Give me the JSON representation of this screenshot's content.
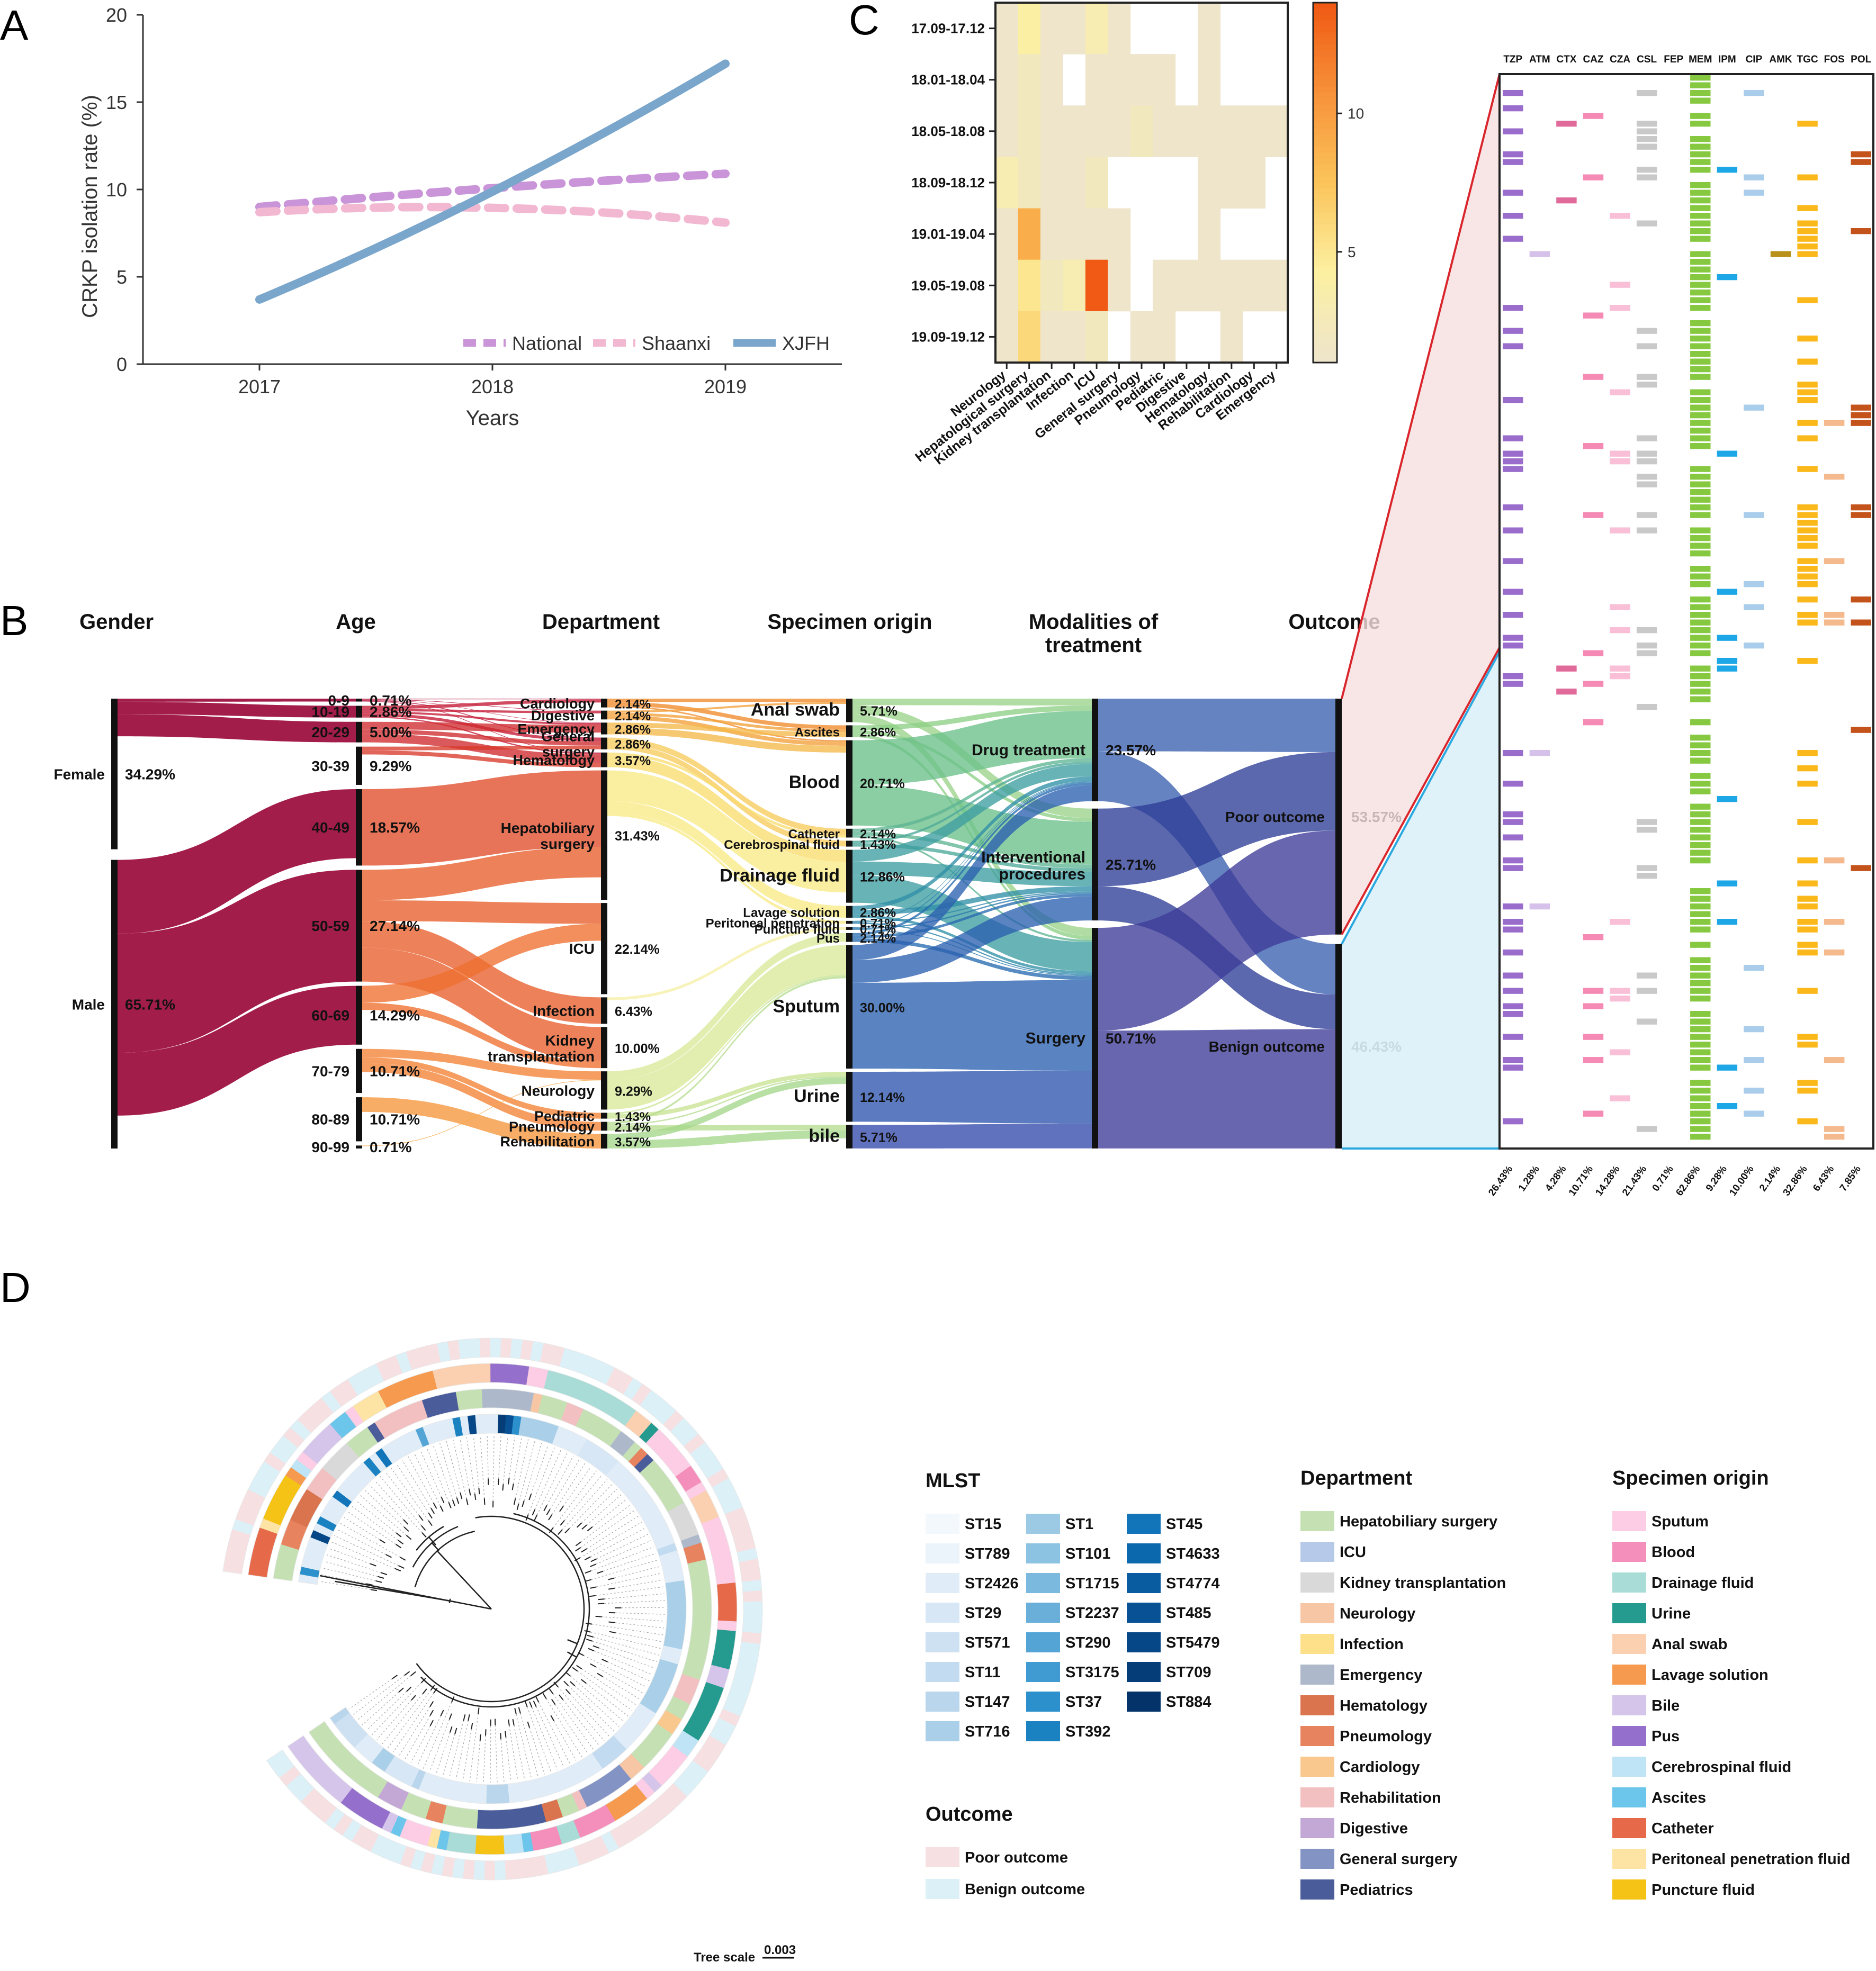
{
  "panel_labels": {
    "a": "A",
    "b": "B",
    "c": "C",
    "d": "D"
  },
  "chart_data": [
    {
      "type": "line",
      "panel": "A",
      "xlabel": "Years",
      "ylabel": "CRKP isolation rate (%)",
      "x": [
        2017,
        2018,
        2019
      ],
      "ylim": [
        0,
        20
      ],
      "yticks": [
        "0",
        "5",
        "10",
        "15",
        "20"
      ],
      "xticks": [
        "2017",
        "2018",
        "2019"
      ],
      "legend_position": "bottom-right",
      "series": [
        {
          "name": "National",
          "style": "dashed",
          "color": "#c994d8",
          "values": [
            9.0,
            10.2,
            10.9
          ]
        },
        {
          "name": "Shaanxi",
          "style": "dashed",
          "color": "#f2b8d2",
          "values": [
            8.7,
            9.5,
            8.1
          ]
        },
        {
          "name": "XJFH",
          "style": "solid",
          "color": "#7aa6cc",
          "values": [
            3.7,
            9.3,
            17.2
          ]
        }
      ]
    },
    {
      "type": "heatmap",
      "panel": "C",
      "rows": [
        "17.09-17.12",
        "18.01-18.04",
        "18.05-18.08",
        "18.09-18.12",
        "19.01-19.04",
        "19.05-19.08",
        "19.09-19.12"
      ],
      "columns": [
        "Neurology",
        "Hepatological surgery",
        "Kidney transplantation",
        "Infection",
        "ICU",
        "General surgery",
        "Pneumology",
        "Pediatric",
        "Digestive",
        "Hematology",
        "Rehabilitation",
        "Cardiology",
        "Emergency"
      ],
      "colorbar_ticks": [
        "5",
        "10"
      ],
      "colorbar_range": [
        1,
        14
      ],
      "values": [
        [
          1,
          4,
          1,
          1,
          3,
          1,
          0,
          0,
          0,
          1,
          0,
          0,
          0
        ],
        [
          1,
          2,
          1,
          0,
          1,
          1,
          1,
          1,
          0,
          1,
          0,
          0,
          0
        ],
        [
          1,
          2,
          1,
          1,
          1,
          1,
          2,
          1,
          1,
          1,
          1,
          1,
          1
        ],
        [
          3,
          2,
          1,
          1,
          2,
          0,
          0,
          0,
          0,
          1,
          1,
          1,
          0
        ],
        [
          1,
          9,
          1,
          1,
          1,
          1,
          0,
          0,
          0,
          1,
          0,
          0,
          0
        ],
        [
          1,
          5,
          2,
          3,
          14,
          1,
          0,
          1,
          1,
          1,
          1,
          1,
          1
        ],
        [
          1,
          6,
          1,
          1,
          2,
          0,
          1,
          1,
          0,
          0,
          1,
          0,
          0
        ]
      ]
    },
    {
      "type": "sankey",
      "panel": "B",
      "stage_titles": [
        "Gender",
        "Age",
        "Department",
        "Specimen origin",
        "Modalities of treatment",
        "Outcome"
      ],
      "stages": [
        [
          {
            "label": "Female",
            "pct": "34.29%",
            "value": 34.29
          },
          {
            "label": "Male",
            "pct": "65.71%",
            "value": 65.71
          }
        ],
        [
          {
            "label": "0-9",
            "pct": "0.71%",
            "value": 0.71
          },
          {
            "label": "10-19",
            "pct": "2.86%",
            "value": 2.86
          },
          {
            "label": "20-29",
            "pct": "5.00%",
            "value": 5.0
          },
          {
            "label": "30-39",
            "pct": "9.29%",
            "value": 9.29
          },
          {
            "label": "40-49",
            "pct": "18.57%",
            "value": 18.57
          },
          {
            "label": "50-59",
            "pct": "27.14%",
            "value": 27.14
          },
          {
            "label": "60-69",
            "pct": "14.29%",
            "value": 14.29
          },
          {
            "label": "70-79",
            "pct": "10.71%",
            "value": 10.71
          },
          {
            "label": "80-89",
            "pct": "10.71%",
            "value": 10.71
          },
          {
            "label": "90-99",
            "pct": "0.71%",
            "value": 0.71
          }
        ],
        [
          {
            "label": "Cardiology",
            "pct": "2.14%",
            "value": 2.14
          },
          {
            "label": "Digestive",
            "pct": "2.14%",
            "value": 2.14
          },
          {
            "label": "Emergency",
            "pct": "2.86%",
            "value": 2.86
          },
          {
            "label": "General surgery",
            "pct": "2.86%",
            "value": 2.86
          },
          {
            "label": "Hematology",
            "pct": "3.57%",
            "value": 3.57
          },
          {
            "label": "Hepatobiliary surgery",
            "pct": "31.43%",
            "value": 31.43
          },
          {
            "label": "ICU",
            "pct": "22.14%",
            "value": 22.14
          },
          {
            "label": "Infection",
            "pct": "6.43%",
            "value": 6.43
          },
          {
            "label": "Kidney transplantation",
            "pct": "10.00%",
            "value": 10.0
          },
          {
            "label": "Neurology",
            "pct": "9.29%",
            "value": 9.29
          },
          {
            "label": "Pediatric",
            "pct": "1.43%",
            "value": 1.43
          },
          {
            "label": "Pneumology",
            "pct": "2.14%",
            "value": 2.14
          },
          {
            "label": "Rehabilitation",
            "pct": "3.57%",
            "value": 3.57
          }
        ],
        [
          {
            "label": "Anal swab",
            "pct": "5.71%",
            "value": 5.71
          },
          {
            "label": "Ascites",
            "pct": "2.86%",
            "value": 2.86
          },
          {
            "label": "Blood",
            "pct": "20.71%",
            "value": 20.71
          },
          {
            "label": "Catheter",
            "pct": "2.14%",
            "value": 2.14
          },
          {
            "label": "Cerebrospinal fluid",
            "pct": "1.43%",
            "value": 1.43
          },
          {
            "label": "Drainage fluid",
            "pct": "12.86%",
            "value": 12.86
          },
          {
            "label": "Lavage solution",
            "pct": "2.86%",
            "value": 2.86
          },
          {
            "label": "Peritoneal penetration",
            "pct": "0.71%",
            "value": 0.71
          },
          {
            "label": "Puncture fluid",
            "pct": "0.71%",
            "value": 0.71
          },
          {
            "label": "Pus",
            "pct": "2.14%",
            "value": 2.14
          },
          {
            "label": "Sputum",
            "pct": "30.00%",
            "value": 30.0
          },
          {
            "label": "Urine",
            "pct": "12.14%",
            "value": 12.14
          },
          {
            "label": "bile",
            "pct": "5.71%",
            "value": 5.71
          }
        ],
        [
          {
            "label": "Drug treatment",
            "pct": "23.57%",
            "value": 23.57
          },
          {
            "label": "Interventional procedures",
            "pct": "25.71%",
            "value": 25.71
          },
          {
            "label": "Surgery",
            "pct": "50.71%",
            "value": 50.71
          }
        ],
        [
          {
            "label": "Poor outcome",
            "pct": "53.57%",
            "value": 53.57
          },
          {
            "label": "Benign outcome",
            "pct": "46.43%",
            "value": 46.43
          }
        ]
      ]
    },
    {
      "type": "table",
      "panel": "B-resistance",
      "columns": [
        "TZP",
        "ATM",
        "CTX",
        "CAZ",
        "CZA",
        "CSL",
        "FEP",
        "MEM",
        "IPM",
        "CIP",
        "AMK",
        "TGC",
        "FOS",
        "POL"
      ],
      "bottom_labels": [
        "26.43%",
        "1.28%",
        "4.28%",
        "10.71%",
        "14.28%",
        "21.43%",
        "0.71%",
        "62.86%",
        "9.28%",
        "10.00%",
        "2.14%",
        "32.86%",
        "6.43%",
        "7.85%"
      ],
      "resistance_rate": [
        26.43,
        1.28,
        4.28,
        10.71,
        14.28,
        21.43,
        0.71,
        62.86,
        9.28,
        10.0,
        2.14,
        32.86,
        6.43,
        7.85
      ],
      "column_colors": [
        "#9a6dcc",
        "#d6c1ea",
        "#e06a9a",
        "#f58ab5",
        "#f8bfd6",
        "#c9c9c9",
        "#3a3a3a",
        "#86c940",
        "#1ea7e6",
        "#a9cdea",
        "#b8901a",
        "#fbb81a",
        "#f4b98d",
        "#c4521b"
      ],
      "n_rows": 140,
      "poor_rows": 75
    },
    {
      "type": "other",
      "subtype": "circular phylogenetic tree",
      "panel": "D",
      "tree_scale_label": "Tree scale",
      "tree_scale_value": "0.003",
      "legends": {
        "mlst": {
          "title": "MLST",
          "items": [
            {
              "label": "ST15",
              "color": "#f3f8fd"
            },
            {
              "label": "ST789",
              "color": "#ebf3fb"
            },
            {
              "label": "ST2426",
              "color": "#e0edf8"
            },
            {
              "label": "ST29",
              "color": "#d7e7f5"
            },
            {
              "label": "ST571",
              "color": "#cde1f2"
            },
            {
              "label": "ST11",
              "color": "#c3dbf0"
            },
            {
              "label": "ST147",
              "color": "#b9d6ec"
            },
            {
              "label": "ST716",
              "color": "#aacfe8"
            },
            {
              "label": "ST1",
              "color": "#9ccae5"
            },
            {
              "label": "ST101",
              "color": "#8cc2e2"
            },
            {
              "label": "ST1715",
              "color": "#7bb9de"
            },
            {
              "label": "ST2237",
              "color": "#69afd9"
            },
            {
              "label": "ST290",
              "color": "#54a5d5"
            },
            {
              "label": "ST3175",
              "color": "#3f9bd1"
            },
            {
              "label": "ST37",
              "color": "#2b90cb"
            },
            {
              "label": "ST392",
              "color": "#1b82c2"
            },
            {
              "label": "ST45",
              "color": "#1275b9"
            },
            {
              "label": "ST4633",
              "color": "#0c68ad"
            },
            {
              "label": "ST4774",
              "color": "#095ca0"
            },
            {
              "label": "ST485",
              "color": "#075194"
            },
            {
              "label": "ST5479",
              "color": "#064787"
            },
            {
              "label": "ST709",
              "color": "#053d79"
            },
            {
              "label": "ST884",
              "color": "#04336a"
            }
          ]
        },
        "outcome": {
          "title": "Outcome",
          "items": [
            {
              "label": "Poor outcome",
              "color": "#f6e0e1"
            },
            {
              "label": "Benign outcome",
              "color": "#dcf0f8"
            }
          ]
        },
        "department": {
          "title": "Department",
          "items": [
            {
              "label": "Hepatobiliary surgery",
              "color": "#c5e0b3"
            },
            {
              "label": "ICU",
              "color": "#b7c9e8"
            },
            {
              "label": "Kidney transplantation",
              "color": "#d9d9d9"
            },
            {
              "label": "Neurology",
              "color": "#f7c6a5"
            },
            {
              "label": "Infection",
              "color": "#ffe08a"
            },
            {
              "label": "Emergency",
              "color": "#adb9ca"
            },
            {
              "label": "Hematology",
              "color": "#d9744f"
            },
            {
              "label": "Pneumology",
              "color": "#e8835f"
            },
            {
              "label": "Cardiology",
              "color": "#f9c88f"
            },
            {
              "label": "Rehabilitation",
              "color": "#f2c0c0"
            },
            {
              "label": "Digestive",
              "color": "#c3a8d6"
            },
            {
              "label": "General surgery",
              "color": "#8393c4"
            },
            {
              "label": "Pediatrics",
              "color": "#4b5c9a"
            }
          ]
        },
        "specimen": {
          "title": "Specimen origin",
          "items": [
            {
              "label": "Sputum",
              "color": "#fccde4"
            },
            {
              "label": "Blood",
              "color": "#f48eba"
            },
            {
              "label": "Drainage fluid",
              "color": "#a9dcd6"
            },
            {
              "label": "Urine",
              "color": "#259a8e"
            },
            {
              "label": "Anal swab",
              "color": "#fbd0b0"
            },
            {
              "label": "Lavage solution",
              "color": "#f59a4f"
            },
            {
              "label": "Bile",
              "color": "#d5c5ea"
            },
            {
              "label": "Pus",
              "color": "#9470cc"
            },
            {
              "label": "Cerebrospinal fluid",
              "color": "#bfe4f5"
            },
            {
              "label": "Ascites",
              "color": "#6cc5ea"
            },
            {
              "label": "Catheter",
              "color": "#e66a4a"
            },
            {
              "label": "Peritoneal penetration fluid",
              "color": "#fde4a5"
            },
            {
              "label": "Puncture fluid",
              "color": "#f4c316"
            }
          ]
        }
      }
    }
  ]
}
